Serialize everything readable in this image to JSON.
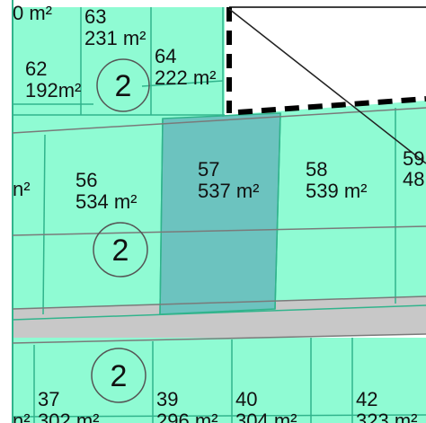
{
  "colors": {
    "parcel_fill": "#8ffbd3",
    "selected_fill": "#6cc3bf",
    "road_fill": "#c8c8c8",
    "parcel_line": "#31b48c",
    "property_line": "#7a7a7a",
    "boundary": "#000000",
    "text": "#111111"
  },
  "map": {
    "parcels": [
      {
        "id": "edge-top-left",
        "num": "",
        "area": "0 m²"
      },
      {
        "id": "63",
        "num": "63",
        "area": "231 m²"
      },
      {
        "id": "64",
        "num": "64",
        "area": "222 m²"
      },
      {
        "id": "62",
        "num": "62",
        "area": "192m²"
      },
      {
        "id": "edge-left",
        "num": "",
        "area": "n²"
      },
      {
        "id": "56",
        "num": "56",
        "area": "534 m²"
      },
      {
        "id": "57",
        "num": "57",
        "area": "537 m²",
        "selected": true
      },
      {
        "id": "58",
        "num": "58",
        "area": "539 m²"
      },
      {
        "id": "59",
        "num": "59",
        "area": "48"
      },
      {
        "id": "37",
        "num": "37",
        "area": "302 m²"
      },
      {
        "id": "edge-bottom-left",
        "num": "",
        "area": "n²"
      },
      {
        "id": "39",
        "num": "39",
        "area": "296 m²"
      },
      {
        "id": "40",
        "num": "40",
        "area": "304 m²"
      },
      {
        "id": "42",
        "num": "42",
        "area": "323 m²"
      }
    ],
    "zones": [
      {
        "id": "zone-top",
        "label": "2"
      },
      {
        "id": "zone-middle",
        "label": "2"
      },
      {
        "id": "zone-bottom",
        "label": "2"
      }
    ]
  }
}
